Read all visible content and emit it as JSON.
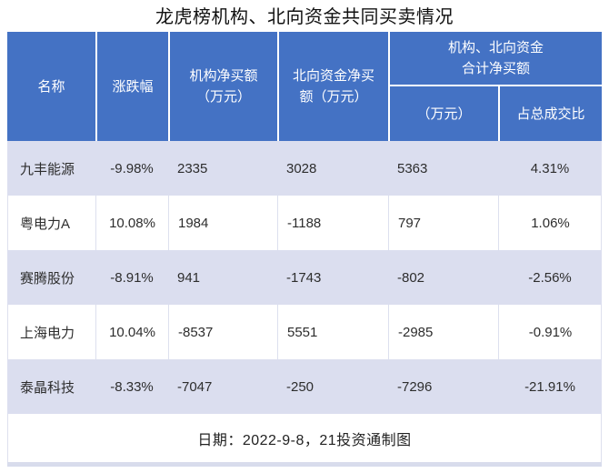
{
  "title": "龙虎榜机构、北向资金共同买卖情况",
  "header": {
    "name": "名称",
    "change": "涨跌幅",
    "inst_line1": "机构净买额",
    "inst_line2": "（万元）",
    "north_line1": "北向资金净买",
    "north_line2": "额（万元）",
    "group_line1": "机构、北向资金",
    "group_line2": "合计净买额",
    "group_amount": "（万元）",
    "group_pct": "占总成交比"
  },
  "rows": [
    {
      "name": "九丰能源",
      "change": "-9.98%",
      "inst": "2335",
      "north": "3028",
      "total": "5363",
      "pct": "4.31%"
    },
    {
      "name": "粤电力A",
      "change": "10.08%",
      "inst": "1984",
      "north": "-1188",
      "total": "797",
      "pct": "1.06%"
    },
    {
      "name": "赛腾股份",
      "change": "-8.91%",
      "inst": "941",
      "north": "-1743",
      "total": "-802",
      "pct": "-2.56%"
    },
    {
      "name": "上海电力",
      "change": "10.04%",
      "inst": "-8537",
      "north": "5551",
      "total": "-2985",
      "pct": "-0.91%"
    },
    {
      "name": "泰晶科技",
      "change": "-8.33%",
      "inst": "-7047",
      "north": "-250",
      "total": "-7296",
      "pct": "-21.91%"
    }
  ],
  "footer": "日期：2022-9-8，21投资通制图",
  "colors": {
    "header_bg": "#4472c4",
    "header_text": "#ffffff",
    "banded_row_bg": "#dbdeef",
    "plain_row_bg": "#ffffff",
    "grid_border": "#dde0ee",
    "body_text": "#2d2d2d"
  },
  "chart_data": {
    "type": "table",
    "title": "龙虎榜机构、北向资金共同买卖情况",
    "columns": [
      "名称",
      "涨跌幅(%)",
      "机构净买额(万元)",
      "北向资金净买额(万元)",
      "机构、北向资金合计净买额(万元)",
      "机构、北向资金合计净买额占总成交比(%)"
    ],
    "rows": [
      [
        "九丰能源",
        -9.98,
        2335,
        3028,
        5363,
        4.31
      ],
      [
        "粤电力A",
        10.08,
        1984,
        -1188,
        797,
        1.06
      ],
      [
        "赛腾股份",
        -8.91,
        941,
        -1743,
        -802,
        -2.56
      ],
      [
        "上海电力",
        10.04,
        -8537,
        5551,
        -2985,
        -0.91
      ],
      [
        "泰晶科技",
        -8.33,
        -7047,
        -250,
        -7296,
        -21.91
      ]
    ],
    "note": "日期：2022-9-8，21投资通制图"
  }
}
